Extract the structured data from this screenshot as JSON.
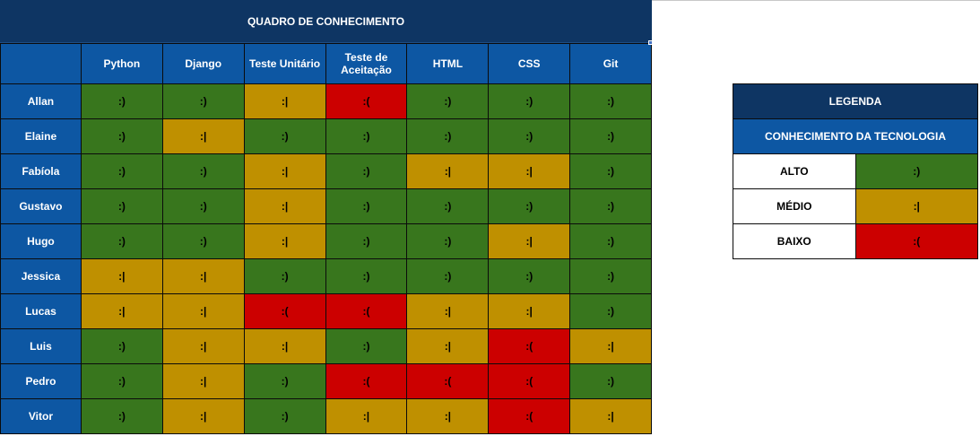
{
  "title": "QUADRO DE CONHECIMENTO",
  "colors": {
    "alto": "#38761d",
    "medio": "#bf9000",
    "baixo": "#cc0000",
    "header": "#0d57a3",
    "title": "#0e3563"
  },
  "levels": {
    "alto": {
      "label": "ALTO",
      "face": ":)"
    },
    "medio": {
      "label": "MÉDIO",
      "face": ":|"
    },
    "baixo": {
      "label": "BAIXO",
      "face": ":("
    }
  },
  "columns": [
    "Python",
    "Django",
    "Teste Unitário",
    "Teste de Aceitação",
    "HTML",
    "CSS",
    "Git"
  ],
  "rows": [
    {
      "name": "Allan",
      "levels": [
        "alto",
        "alto",
        "medio",
        "baixo",
        "alto",
        "alto",
        "alto"
      ]
    },
    {
      "name": "Elaine",
      "levels": [
        "alto",
        "medio",
        "alto",
        "alto",
        "alto",
        "alto",
        "alto"
      ]
    },
    {
      "name": "Fabíola",
      "levels": [
        "alto",
        "alto",
        "medio",
        "alto",
        "medio",
        "medio",
        "alto"
      ]
    },
    {
      "name": "Gustavo",
      "levels": [
        "alto",
        "alto",
        "medio",
        "alto",
        "alto",
        "alto",
        "alto"
      ]
    },
    {
      "name": "Hugo",
      "levels": [
        "alto",
        "alto",
        "medio",
        "alto",
        "alto",
        "medio",
        "alto"
      ]
    },
    {
      "name": "Jessica",
      "levels": [
        "medio",
        "medio",
        "alto",
        "alto",
        "alto",
        "alto",
        "alto"
      ]
    },
    {
      "name": "Lucas",
      "levels": [
        "medio",
        "medio",
        "baixo",
        "baixo",
        "medio",
        "medio",
        "alto"
      ]
    },
    {
      "name": "Luis",
      "levels": [
        "alto",
        "medio",
        "medio",
        "alto",
        "medio",
        "baixo",
        "medio"
      ]
    },
    {
      "name": "Pedro",
      "levels": [
        "alto",
        "medio",
        "alto",
        "baixo",
        "baixo",
        "baixo",
        "alto"
      ]
    },
    {
      "name": "Vitor",
      "levels": [
        "alto",
        "medio",
        "alto",
        "medio",
        "medio",
        "baixo",
        "medio"
      ]
    }
  ],
  "legend": {
    "title": "LEGENDA",
    "subtitle": "CONHECIMENTO DA TECNOLOGIA",
    "order": [
      "alto",
      "medio",
      "baixo"
    ]
  }
}
